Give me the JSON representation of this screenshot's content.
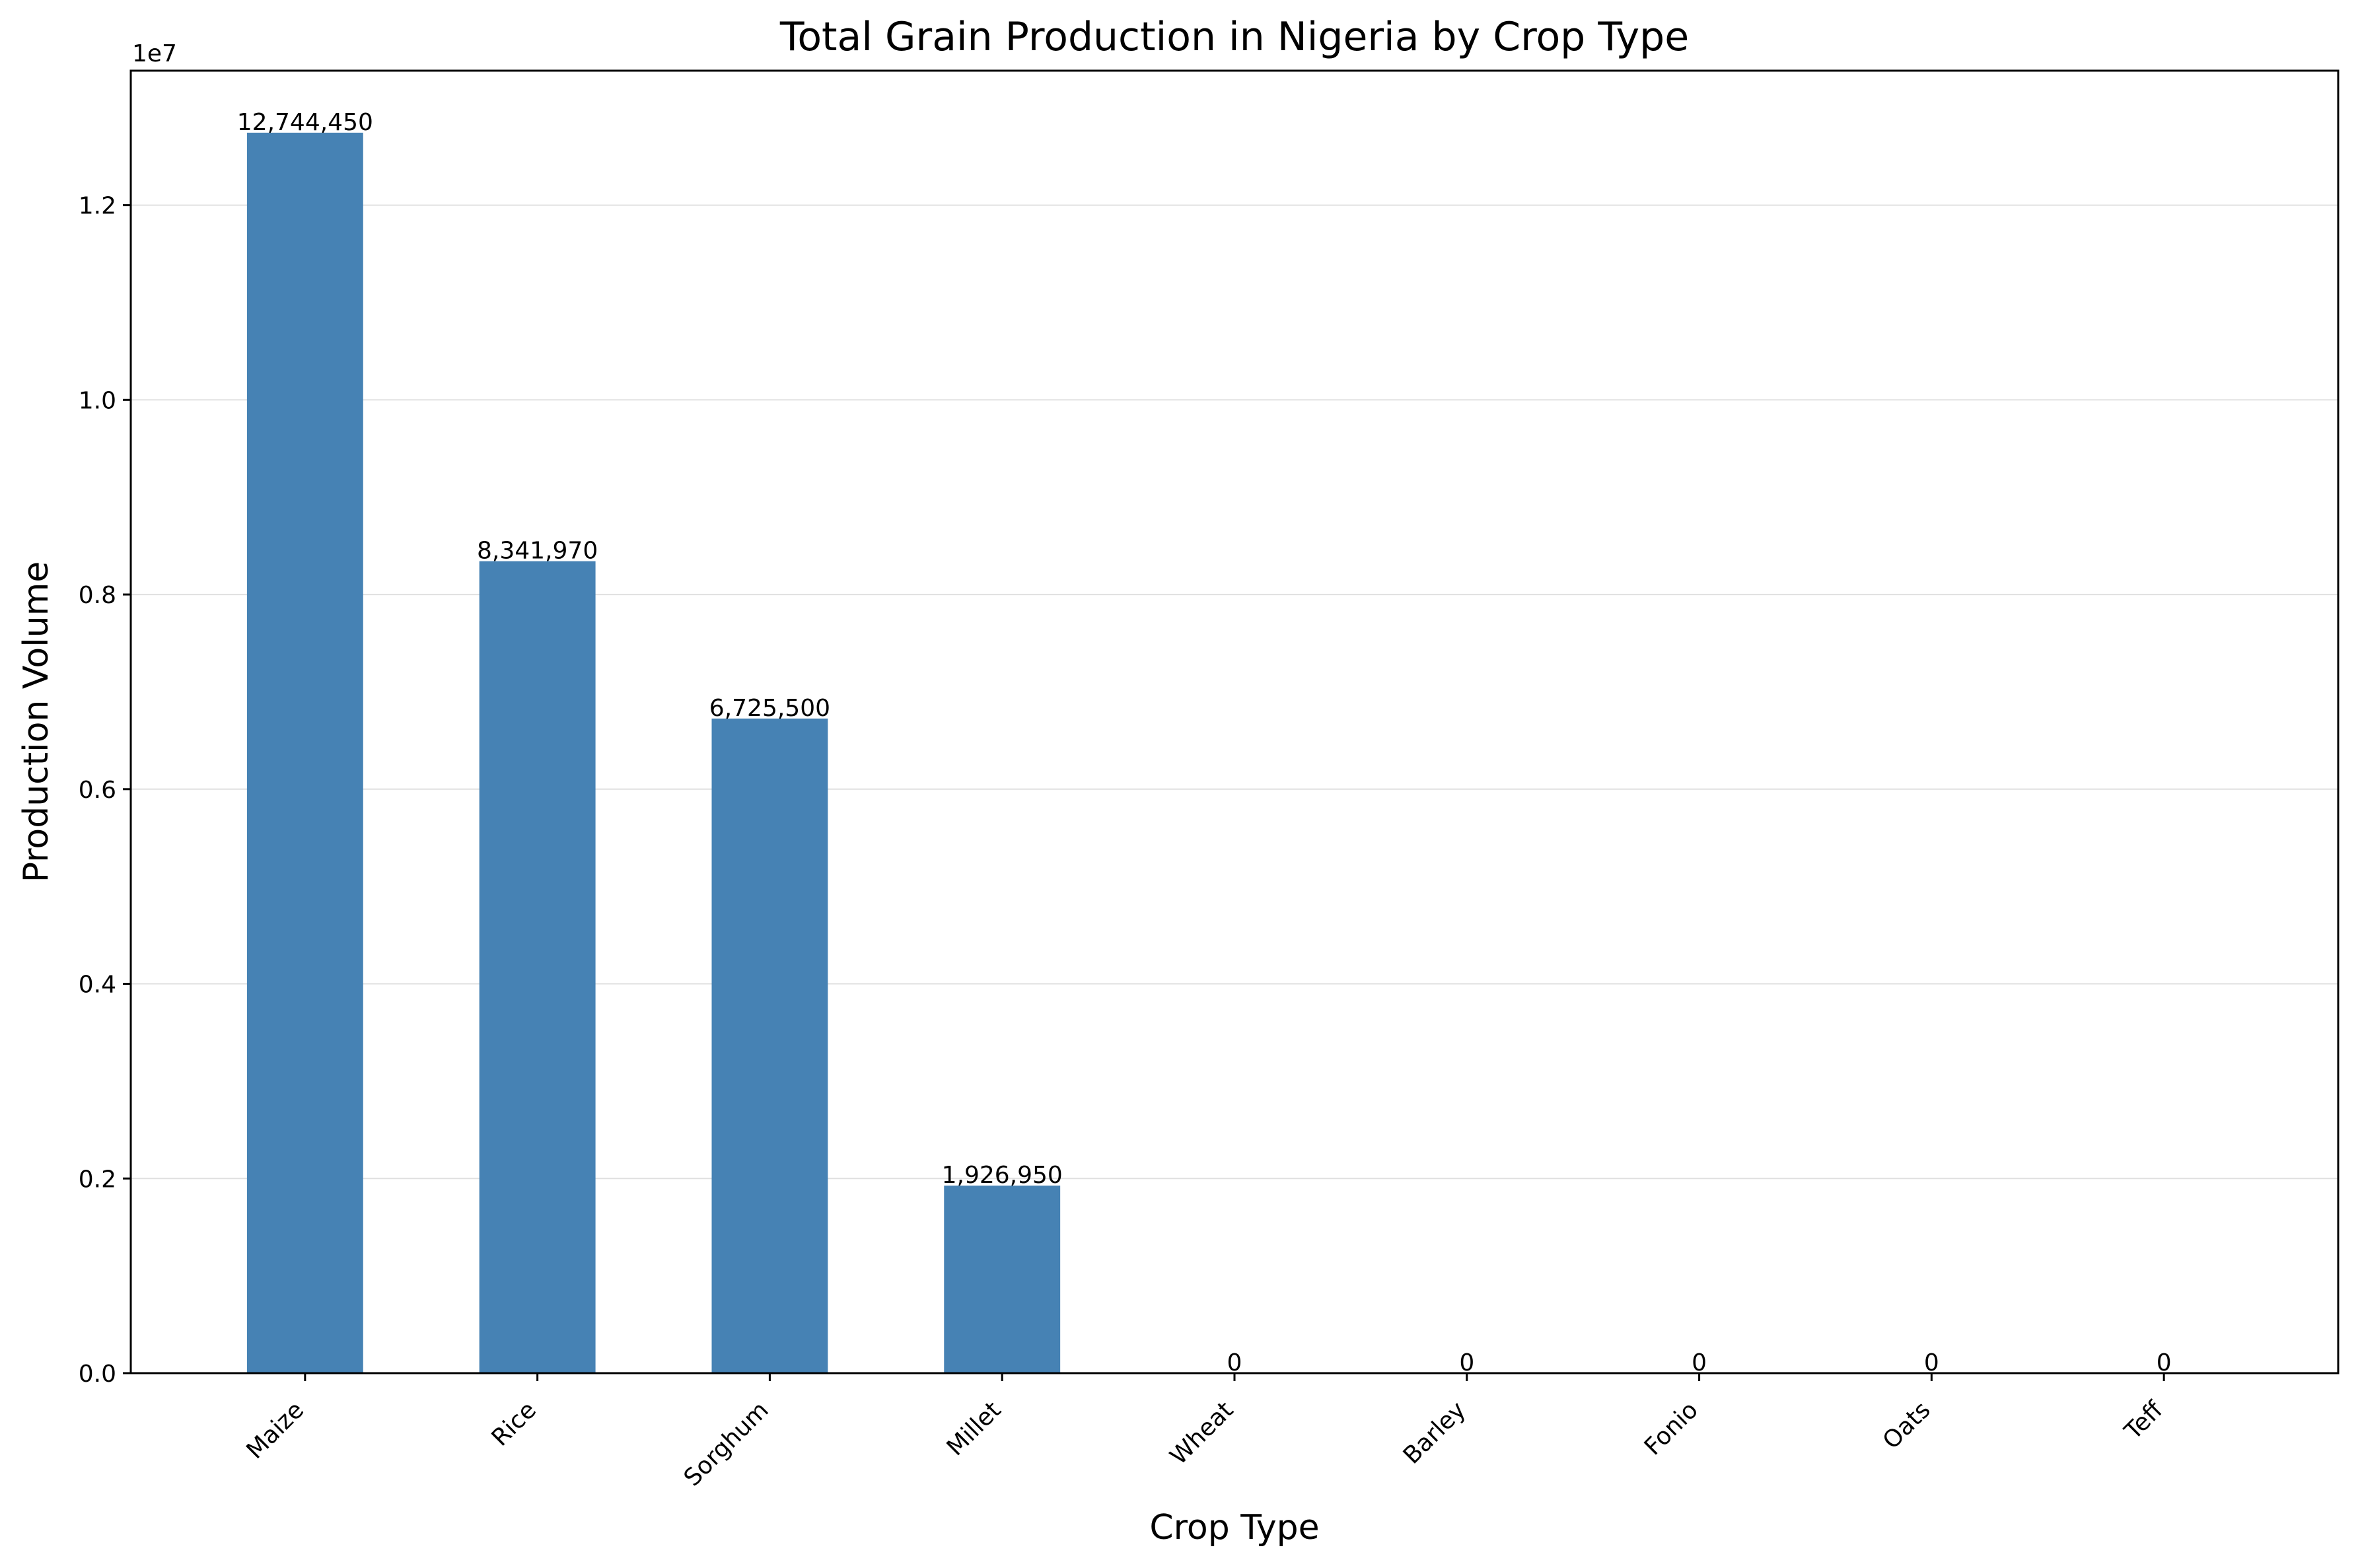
{
  "chart_data": {
    "type": "bar",
    "title": "Total Grain Production in Nigeria by Crop Type",
    "xlabel": "Crop Type",
    "ylabel": "Production Volume",
    "y_offset_label": "1e7",
    "categories": [
      "Maize",
      "Rice",
      "Sorghum",
      "Millet",
      "Wheat",
      "Barley",
      "Fonio",
      "Oats",
      "Teff"
    ],
    "values": [
      12744450,
      8341970,
      6725500,
      1926950,
      0,
      0,
      0,
      0,
      0
    ],
    "data_labels": [
      "12,744,450",
      "8,341,970",
      "6,725,500",
      "1,926,950",
      "0",
      "0",
      "0",
      "0",
      "0"
    ],
    "ylim": [
      0,
      13381672.5
    ],
    "yticks": [
      0,
      2000000,
      4000000,
      6000000,
      8000000,
      10000000,
      12000000
    ],
    "ytick_labels": [
      "0.0",
      "0.2",
      "0.4",
      "0.6",
      "0.8",
      "1.0",
      "1.2"
    ],
    "grid": "y",
    "bar_color": "#4682b4",
    "legend": "none"
  }
}
